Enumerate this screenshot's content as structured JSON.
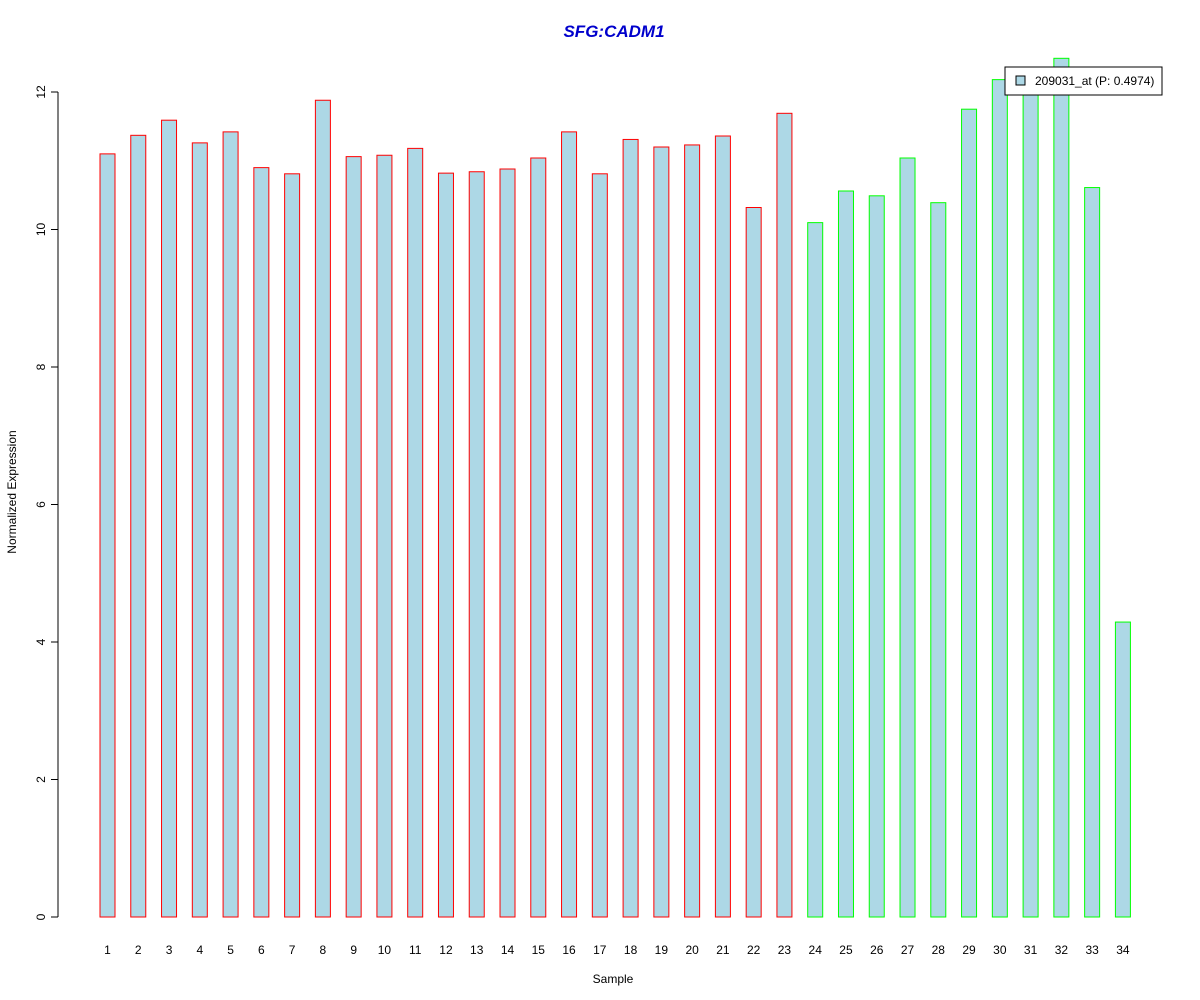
{
  "chart_data": {
    "type": "bar",
    "title": "SFG:CADM1",
    "xlabel": "Sample",
    "ylabel": "Normalized Expression",
    "ylim": [
      0,
      12.5
    ],
    "yticks": [
      0,
      2,
      4,
      6,
      8,
      10,
      12
    ],
    "grid": false,
    "legend": {
      "position": "top-right",
      "label": "209031_at (P: 0.4974)"
    },
    "colors": {
      "fill": "#add8e6",
      "group1_border": "#ff0000",
      "group2_border": "#00ff00",
      "title": "#0000cc"
    },
    "categories": [
      "1",
      "2",
      "3",
      "4",
      "5",
      "6",
      "7",
      "8",
      "9",
      "10",
      "11",
      "12",
      "13",
      "14",
      "15",
      "16",
      "17",
      "18",
      "19",
      "20",
      "21",
      "22",
      "23",
      "24",
      "25",
      "26",
      "27",
      "28",
      "29",
      "30",
      "31",
      "32",
      "33",
      "34"
    ],
    "values": [
      11.1,
      11.37,
      11.59,
      11.26,
      11.42,
      10.9,
      10.81,
      11.88,
      11.06,
      11.08,
      11.18,
      10.82,
      10.84,
      10.88,
      11.04,
      11.42,
      10.81,
      11.31,
      11.2,
      11.23,
      11.36,
      10.32,
      11.69,
      10.1,
      10.56,
      10.49,
      11.04,
      10.39,
      11.75,
      12.18,
      12.0,
      12.49,
      10.61,
      4.29
    ],
    "groups": [
      1,
      1,
      1,
      1,
      1,
      1,
      1,
      1,
      1,
      1,
      1,
      1,
      1,
      1,
      1,
      1,
      1,
      1,
      1,
      1,
      1,
      1,
      1,
      2,
      2,
      2,
      2,
      2,
      2,
      2,
      2,
      2,
      2,
      2
    ]
  }
}
